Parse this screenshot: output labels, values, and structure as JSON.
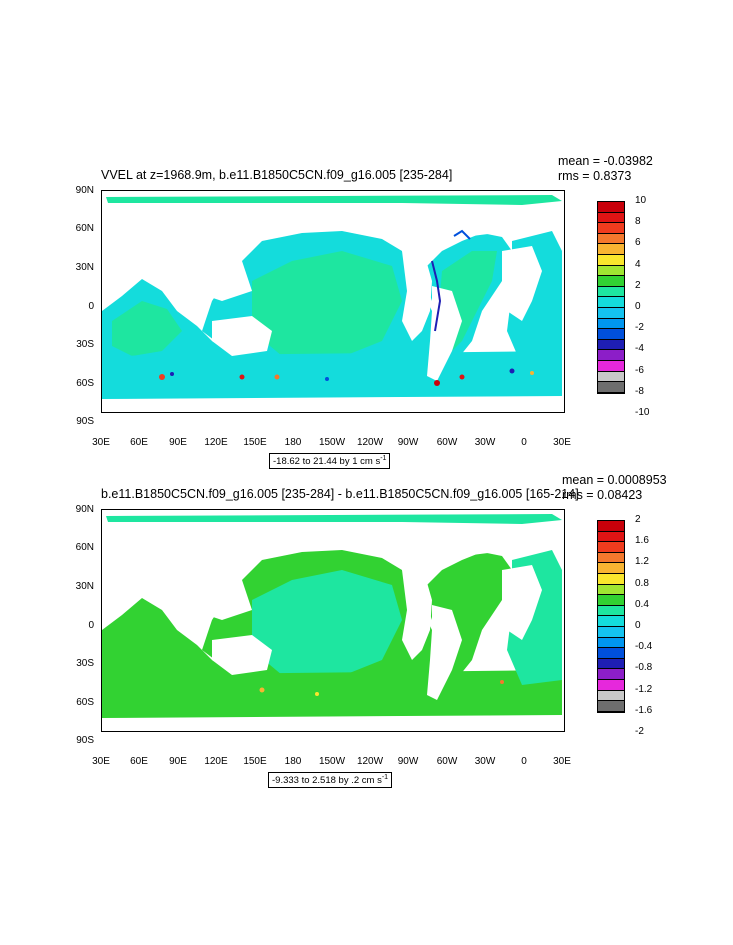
{
  "plots": [
    {
      "id": "top",
      "title": "VVEL at z=1968.9m, b.e11.B1850C5CN.f09_g16.005 [235-284]",
      "mean": "mean = -0.03982",
      "rms": "rms = 0.8373",
      "range_label": "-18.62 to 21.44 by 1 cm s",
      "range_sup": "-1",
      "cbar_labels": [
        "10",
        "8",
        "6",
        "4",
        "2",
        "0",
        "-2",
        "-4",
        "-6",
        "-8",
        "-10"
      ],
      "cbar_colors": [
        "#c8000a",
        "#e01414",
        "#f03c1e",
        "#f4782d",
        "#f8b432",
        "#fae62d",
        "#a0e632",
        "#32d232",
        "#1ee6a0",
        "#14dcdc",
        "#14c3f0",
        "#0096f0",
        "#0050dc",
        "#1e1eb4",
        "#8c1ec8",
        "#e628dc",
        "#c8c8c8",
        "#6e6e6e"
      ]
    },
    {
      "id": "bottom",
      "title": "b.e11.B1850C5CN.f09_g16.005 [235-284] - b.e11.B1850C5CN.f09_g16.005 [165-214]",
      "mean": "mean = 0.0008953",
      "rms": "rms = 0.08423",
      "range_label": "-9.333 to 2.518 by .2 cm s",
      "range_sup": "-1",
      "cbar_labels": [
        "2",
        "1.6",
        "1.2",
        "0.8",
        "0.4",
        "0",
        "-0.4",
        "-0.8",
        "-1.2",
        "-1.6",
        "-2"
      ],
      "cbar_colors": [
        "#c8000a",
        "#e01414",
        "#f03c1e",
        "#f4782d",
        "#f8b432",
        "#fae62d",
        "#a0e632",
        "#32d232",
        "#1ee6a0",
        "#14dcdc",
        "#14c3f0",
        "#0096f0",
        "#0050dc",
        "#1e1eb4",
        "#8c1ec8",
        "#e628dc",
        "#c8c8c8",
        "#6e6e6e"
      ]
    }
  ],
  "lat_labels": [
    "90N",
    "60N",
    "30N",
    "0",
    "30S",
    "60S",
    "90S"
  ],
  "lon_labels": [
    "30E",
    "60E",
    "90E",
    "120E",
    "150E",
    "180",
    "150W",
    "120W",
    "90W",
    "60W",
    "30W",
    "0",
    "30E"
  ],
  "colors": {
    "ocean_main": "#1ee6a0",
    "ocean_alt": "#32d232",
    "cyan": "#14dcdc",
    "land": "#ffffff"
  }
}
